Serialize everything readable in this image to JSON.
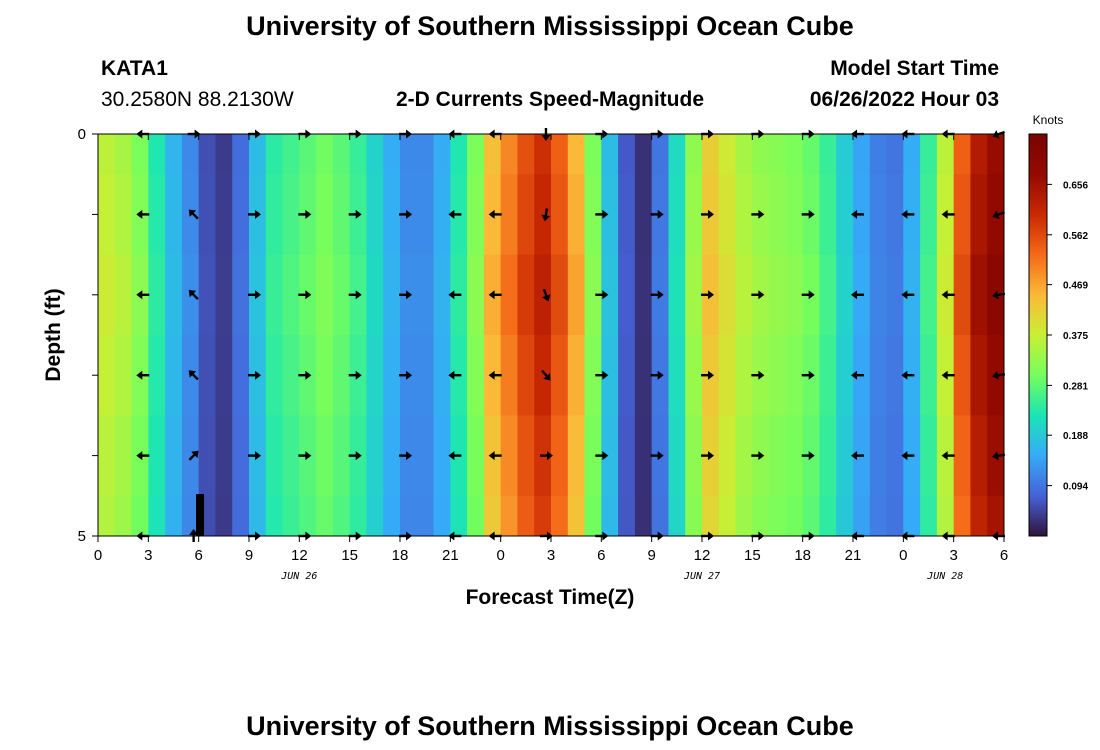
{
  "page": {
    "title": "University of Southern Mississippi Ocean Cube",
    "station_id": "KATA1",
    "location": "30.2580N  88.2130W",
    "plot_title": "2-D Currents Speed-Magnitude",
    "model_start_label": "Model Start Time",
    "model_start_value": "06/26/2022 Hour 03",
    "footer_title": "University of Southern Mississippi Ocean Cube"
  },
  "chart_data": {
    "type": "heatmap",
    "title": "2-D Currents Speed-Magnitude",
    "xlabel": "Forecast Time(Z)",
    "ylabel": "Depth (ft)",
    "colorbar_label": "Knots",
    "x_ticks": [
      "0",
      "3",
      "6",
      "9",
      "12",
      "15",
      "18",
      "21",
      "0",
      "3",
      "6",
      "9",
      "12",
      "15",
      "18",
      "21",
      "0",
      "3",
      "6"
    ],
    "x_range_hours": [
      0,
      54
    ],
    "date_labels": [
      {
        "text": "JUN 26",
        "hour": 12
      },
      {
        "text": "JUN 27",
        "hour": 36
      },
      {
        "text": "JUN 28",
        "hour": 50.5
      }
    ],
    "y_ticks": [
      "0",
      "5"
    ],
    "y_range": [
      0,
      5
    ],
    "colorbar_ticks": [
      "0.094",
      "0.188",
      "0.281",
      "0.375",
      "0.469",
      "0.562",
      "0.656"
    ],
    "color_range": [
      0,
      0.75
    ],
    "hours": [
      0,
      1,
      2,
      3,
      4,
      5,
      6,
      7,
      8,
      9,
      10,
      11,
      12,
      13,
      14,
      15,
      16,
      17,
      18,
      19,
      20,
      21,
      22,
      23,
      24,
      25,
      26,
      27,
      28,
      29,
      30,
      31,
      32,
      33,
      34,
      35,
      36,
      37,
      38,
      39,
      40,
      41,
      42,
      43,
      44,
      45,
      46,
      47,
      48,
      49,
      50,
      51,
      52,
      53
    ],
    "speed": [
      0.38,
      0.36,
      0.32,
      0.24,
      0.17,
      0.12,
      0.06,
      0.04,
      0.09,
      0.18,
      0.25,
      0.27,
      0.29,
      0.31,
      0.29,
      0.26,
      0.21,
      0.16,
      0.12,
      0.12,
      0.16,
      0.24,
      0.32,
      0.46,
      0.52,
      0.58,
      0.62,
      0.56,
      0.47,
      0.32,
      0.18,
      0.07,
      0.03,
      0.1,
      0.22,
      0.34,
      0.44,
      0.4,
      0.36,
      0.34,
      0.33,
      0.32,
      0.3,
      0.26,
      0.2,
      0.15,
      0.11,
      0.1,
      0.16,
      0.26,
      0.38,
      0.56,
      0.66,
      0.7
    ],
    "depth_rows": [
      0.25,
      1.0,
      2.0,
      3.0,
      4.0,
      4.75
    ],
    "arrow_depths": [
      0,
      1,
      2,
      3,
      4,
      5
    ],
    "arrow_hours": [
      2.7,
      5.7,
      9.3,
      12.3,
      15.3,
      18.3,
      21.3,
      23.7,
      26.7,
      30.0,
      33.3,
      36.3,
      39.3,
      42.3,
      45.3,
      48.3,
      50.7,
      53.7
    ],
    "arrow_dir_deg": [
      [
        180,
        0,
        0,
        0,
        0,
        0,
        180,
        180,
        270,
        0,
        0,
        0,
        0,
        0,
        180,
        180,
        180,
        200
      ],
      [
        180,
        135,
        0,
        0,
        0,
        0,
        180,
        180,
        260,
        0,
        0,
        0,
        0,
        0,
        180,
        180,
        180,
        200
      ],
      [
        180,
        135,
        0,
        0,
        0,
        0,
        180,
        180,
        290,
        0,
        0,
        0,
        0,
        0,
        180,
        180,
        180,
        190
      ],
      [
        180,
        135,
        0,
        0,
        0,
        0,
        180,
        180,
        310,
        0,
        0,
        0,
        0,
        0,
        180,
        180,
        180,
        190
      ],
      [
        180,
        45,
        0,
        0,
        0,
        0,
        180,
        180,
        0,
        0,
        0,
        0,
        0,
        0,
        180,
        180,
        180,
        190
      ],
      [
        180,
        90,
        0,
        0,
        0,
        0,
        180,
        180,
        0,
        0,
        0,
        0,
        0,
        0,
        180,
        180,
        180,
        180
      ]
    ]
  }
}
